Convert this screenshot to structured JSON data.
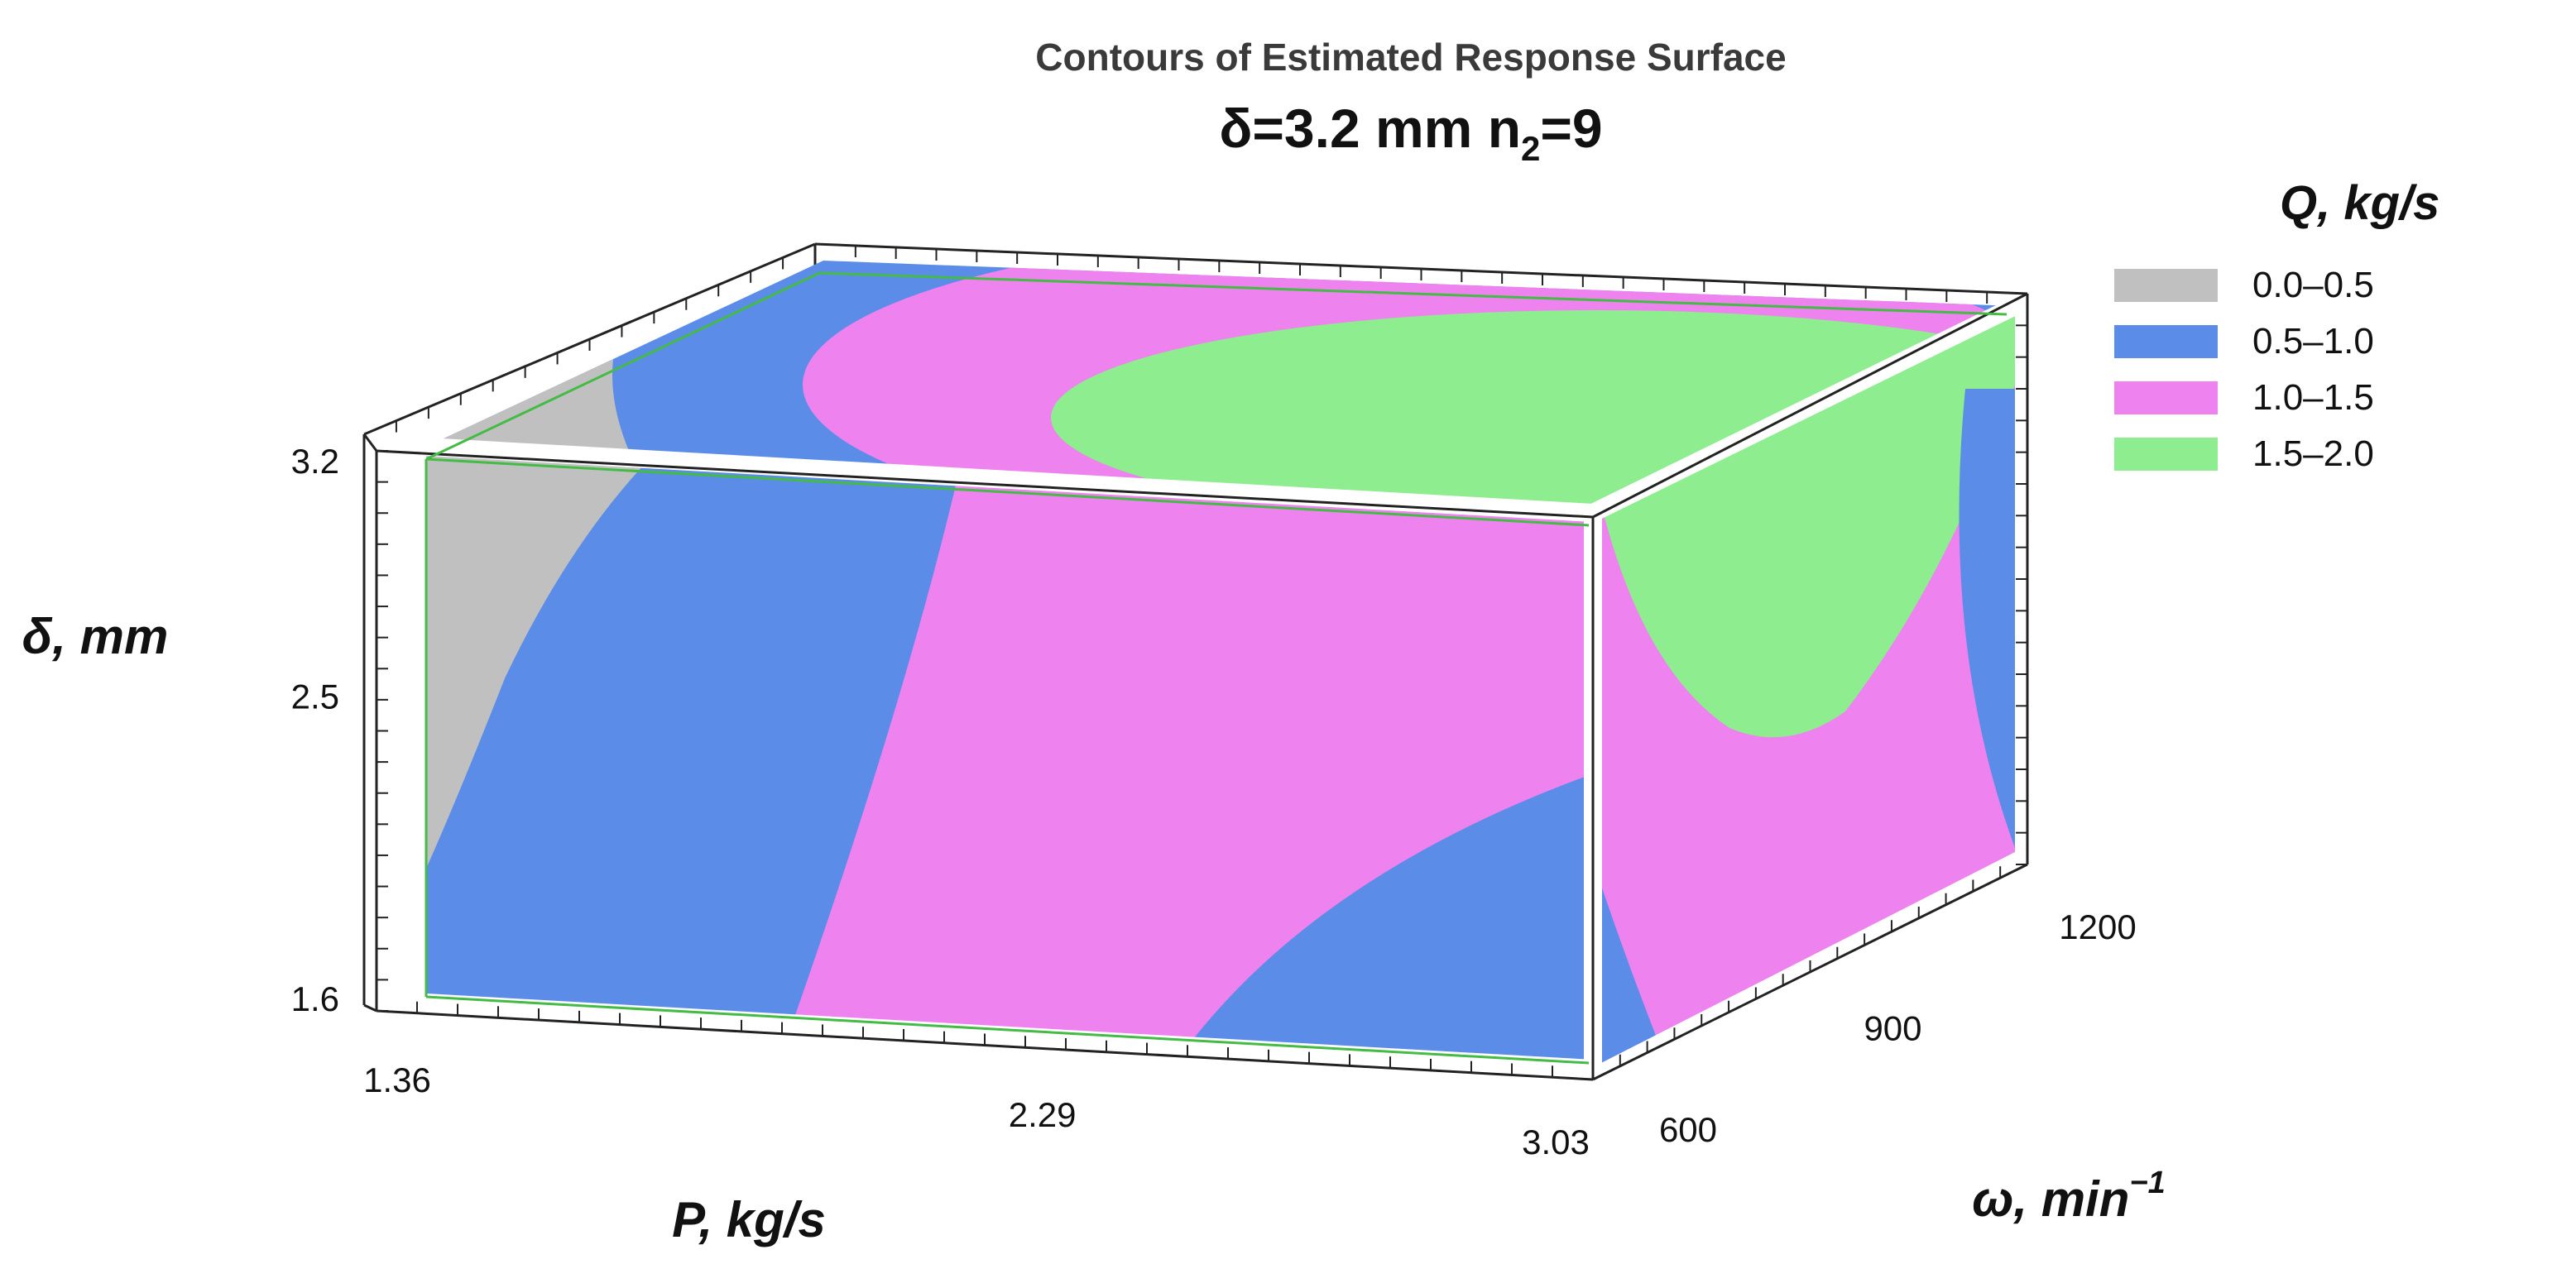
{
  "chart_data": {
    "type": "3d-contour-box",
    "title": "Contours of Estimated Response Surface",
    "subtitle": {
      "prefix": "δ=3.2 mm   n",
      "subscript": "2",
      "suffix": "=9"
    },
    "axes": {
      "x": {
        "label": "P, kg/s",
        "ticks": [
          "1.36",
          "2.29",
          "3.03"
        ],
        "range": [
          1.36,
          3.03
        ]
      },
      "y": {
        "label": "δ, mm",
        "ticks": [
          "1.6",
          "2.5",
          "3.2"
        ],
        "range": [
          1.6,
          3.2
        ]
      },
      "z": {
        "label_base": "ω, min",
        "label_sup": "−1",
        "ticks": [
          "600",
          "900",
          "1200"
        ],
        "range": [
          600,
          1200
        ]
      }
    },
    "legend": {
      "title": "Q, kg/s",
      "placement": "right",
      "items": [
        {
          "label": "0.0–0.5",
          "color": "#c0c0c0"
        },
        {
          "label": "0.5–1.0",
          "color": "#5b8de8"
        },
        {
          "label": "1.0–1.5",
          "color": "#ee82ee"
        },
        {
          "label": "1.5–2.0",
          "color": "#8eed8e"
        }
      ]
    },
    "colors": {
      "frame_edge": "#44bb44",
      "box_line": "#222222",
      "gap": "#ffffff"
    }
  }
}
